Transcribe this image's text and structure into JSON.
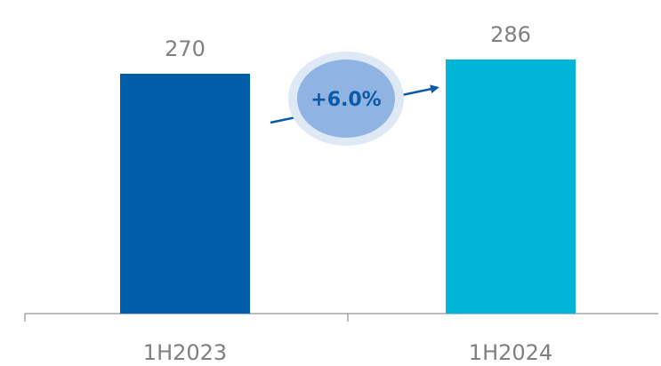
{
  "chart_data": {
    "type": "bar",
    "categories": [
      "1H2023",
      "1H2024"
    ],
    "values": [
      270,
      286
    ],
    "value_labels": [
      "270",
      "286"
    ],
    "title": "",
    "xlabel": "",
    "ylabel": "",
    "ylim": [
      0,
      300
    ],
    "grid": false,
    "legend": "none",
    "colors": [
      "#005daa",
      "#00b5d8"
    ],
    "annotation": {
      "text": "+6.0%",
      "bubble_fill": "#8fb3e3",
      "bubble_halo": "#dfe9f6",
      "arrow_color": "#0a5aa8",
      "text_color": "#0a5aa8"
    },
    "axis_color": "#a6a6a6",
    "label_color": "#7f7f7f"
  }
}
